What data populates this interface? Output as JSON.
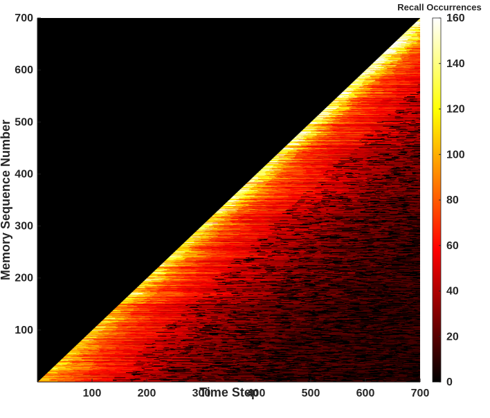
{
  "chart_data": {
    "type": "heatmap",
    "title": "",
    "xlabel": "Time Step",
    "ylabel": "Memory Sequence Number",
    "xlim": [
      0,
      700
    ],
    "ylim": [
      0,
      700
    ],
    "x_ticks": [
      "100",
      "200",
      "300",
      "400",
      "500",
      "600",
      "700"
    ],
    "y_ticks": [
      "100",
      "200",
      "300",
      "400",
      "500",
      "600",
      "700"
    ],
    "colorbar": {
      "label": "Recall Occurrences",
      "min": 0,
      "max": 160,
      "ticks": [
        "0",
        "20",
        "40",
        "60",
        "80",
        "100",
        "120",
        "140",
        "160"
      ],
      "colormap": "hot"
    },
    "structure": "lower-right triangle: values exist only where Time Step >= Memory Sequence Number; upper-left is 0 (black)",
    "approx_profile": [
      {
        "age": 0,
        "value": 100
      },
      {
        "age": 25,
        "value": 85
      },
      {
        "age": 75,
        "value": 65
      },
      {
        "age": 150,
        "value": 48
      },
      {
        "age": 250,
        "value": 32
      },
      {
        "age": 400,
        "value": 20
      },
      {
        "age": 700,
        "value": 12
      }
    ]
  }
}
